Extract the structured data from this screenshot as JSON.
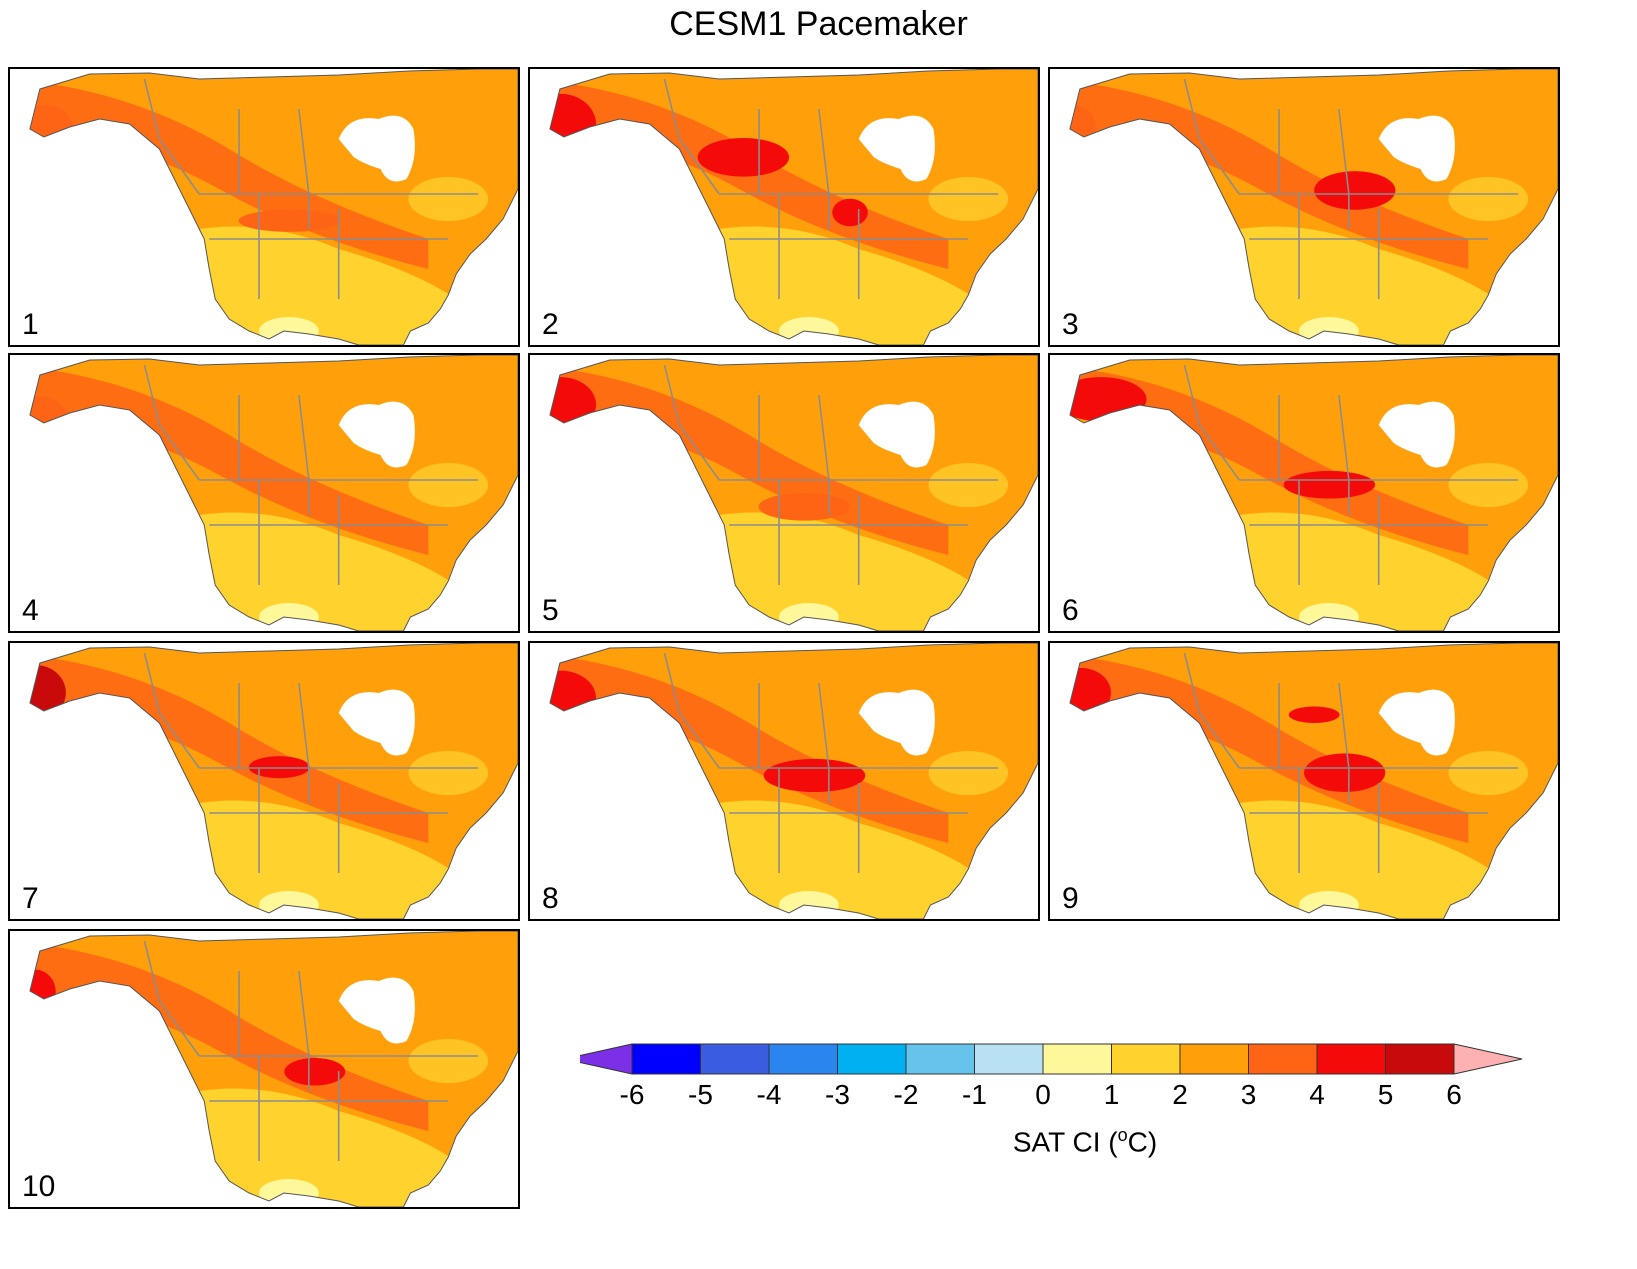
{
  "title": "CESM1 Pacemaker",
  "map_panels": [
    {
      "label": "1",
      "hotspots": [
        [
          "r4",
          0.07,
          0.22,
          0.055,
          0.09
        ],
        [
          "r4",
          0.55,
          0.55,
          0.1,
          0.04
        ]
      ]
    },
    {
      "label": "2",
      "hotspots": [
        [
          "r5",
          0.06,
          0.2,
          0.07,
          0.11
        ],
        [
          "r5",
          0.42,
          0.32,
          0.09,
          0.07
        ],
        [
          "r5",
          0.63,
          0.52,
          0.035,
          0.05
        ]
      ]
    },
    {
      "label": "3",
      "hotspots": [
        [
          "r4",
          0.05,
          0.21,
          0.04,
          0.08
        ],
        [
          "r5",
          0.6,
          0.44,
          0.08,
          0.07
        ]
      ]
    },
    {
      "label": "4",
      "hotspots": [
        [
          "r4",
          0.06,
          0.22,
          0.05,
          0.07
        ]
      ]
    },
    {
      "label": "5",
      "hotspots": [
        [
          "r5",
          0.06,
          0.18,
          0.07,
          0.1
        ],
        [
          "r4",
          0.54,
          0.55,
          0.09,
          0.05
        ]
      ]
    },
    {
      "label": "6",
      "hotspots": [
        [
          "r5",
          0.1,
          0.16,
          0.09,
          0.08
        ],
        [
          "r5",
          0.55,
          0.47,
          0.09,
          0.05
        ]
      ]
    },
    {
      "label": "7",
      "hotspots": [
        [
          "r6",
          0.05,
          0.18,
          0.06,
          0.1
        ],
        [
          "r5",
          0.53,
          0.45,
          0.06,
          0.04
        ]
      ]
    },
    {
      "label": "8",
      "hotspots": [
        [
          "r5",
          0.06,
          0.2,
          0.07,
          0.1
        ],
        [
          "r5",
          0.56,
          0.48,
          0.1,
          0.06
        ]
      ]
    },
    {
      "label": "9",
      "hotspots": [
        [
          "r5",
          0.06,
          0.18,
          0.06,
          0.09
        ],
        [
          "r5",
          0.58,
          0.47,
          0.08,
          0.07
        ],
        [
          "r5",
          0.52,
          0.26,
          0.05,
          0.03
        ]
      ]
    },
    {
      "label": "10",
      "hotspots": [
        [
          "r5",
          0.05,
          0.22,
          0.04,
          0.08
        ],
        [
          "r5",
          0.6,
          0.51,
          0.06,
          0.05
        ]
      ]
    }
  ],
  "colorbar": {
    "title_text": "SAT CI (",
    "title_sup": "o",
    "title_unit": "C)",
    "tick_labels": [
      "-6",
      "-5",
      "-4",
      "-3",
      "-2",
      "-1",
      "0",
      "1",
      "2",
      "3",
      "4",
      "5",
      "6"
    ],
    "low_extend_color": "#7b2fe6",
    "high_extend_color": "#ffb0b0",
    "colors": [
      "#0000ff",
      "#3a5ce0",
      "#2a85ef",
      "#00b0f0",
      "#66c4ec",
      "#b8e2f4",
      "#fff89a",
      "#ffd22e",
      "#ffa00a",
      "#ff6414",
      "#f50a0a",
      "#c80a0a"
    ]
  },
  "palette": {
    "ocean": "#ffffff",
    "base": "#ffa00a",
    "light": "#ffd22e",
    "pale": "#fff89a",
    "r4": "#ff6414",
    "r5": "#f50a0a",
    "r6": "#c80a0a",
    "borders": "#8c8c8c"
  }
}
